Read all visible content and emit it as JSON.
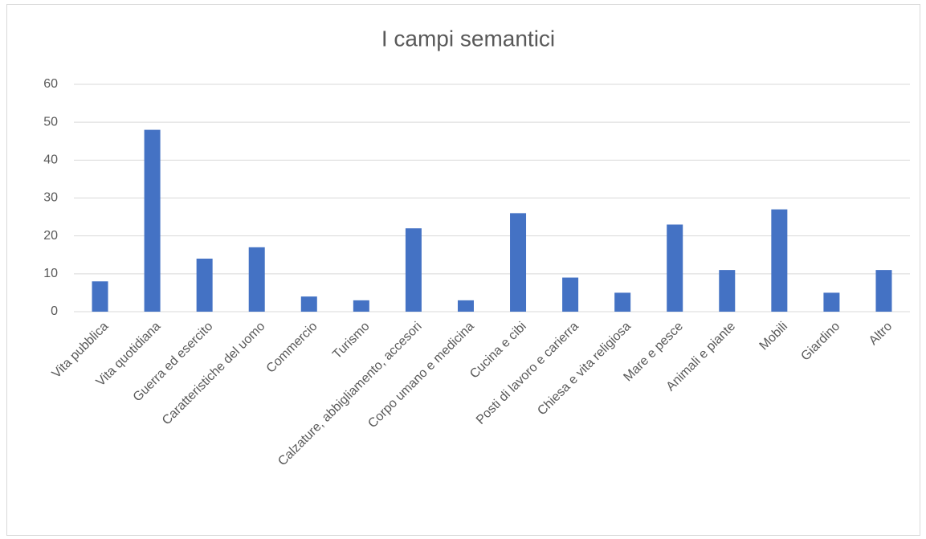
{
  "chart_data": {
    "type": "bar",
    "title": "I campi semantici",
    "categories": [
      "Vita pubblica",
      "Vita quotidiana",
      "Guerra ed esercito",
      "Caratteristiche del uomo",
      "Commercio",
      "Turismo",
      "Calzature, abbigliamento, accesori",
      "Corpo umano e medicina",
      "Cucina e cibi",
      "Posti di lavoro e carierra",
      "Chiesa e vita religiosa",
      "Mare e pesce",
      "Animali e piante",
      "Mobili",
      "Giardino",
      "Altro"
    ],
    "values": [
      8,
      48,
      14,
      17,
      4,
      3,
      22,
      3,
      26,
      9,
      5,
      23,
      11,
      27,
      5,
      11
    ],
    "color": "#4472c4",
    "ylim": [
      0,
      60
    ],
    "yticks": [
      0,
      10,
      20,
      30,
      40,
      50,
      60
    ],
    "grid": true
  }
}
